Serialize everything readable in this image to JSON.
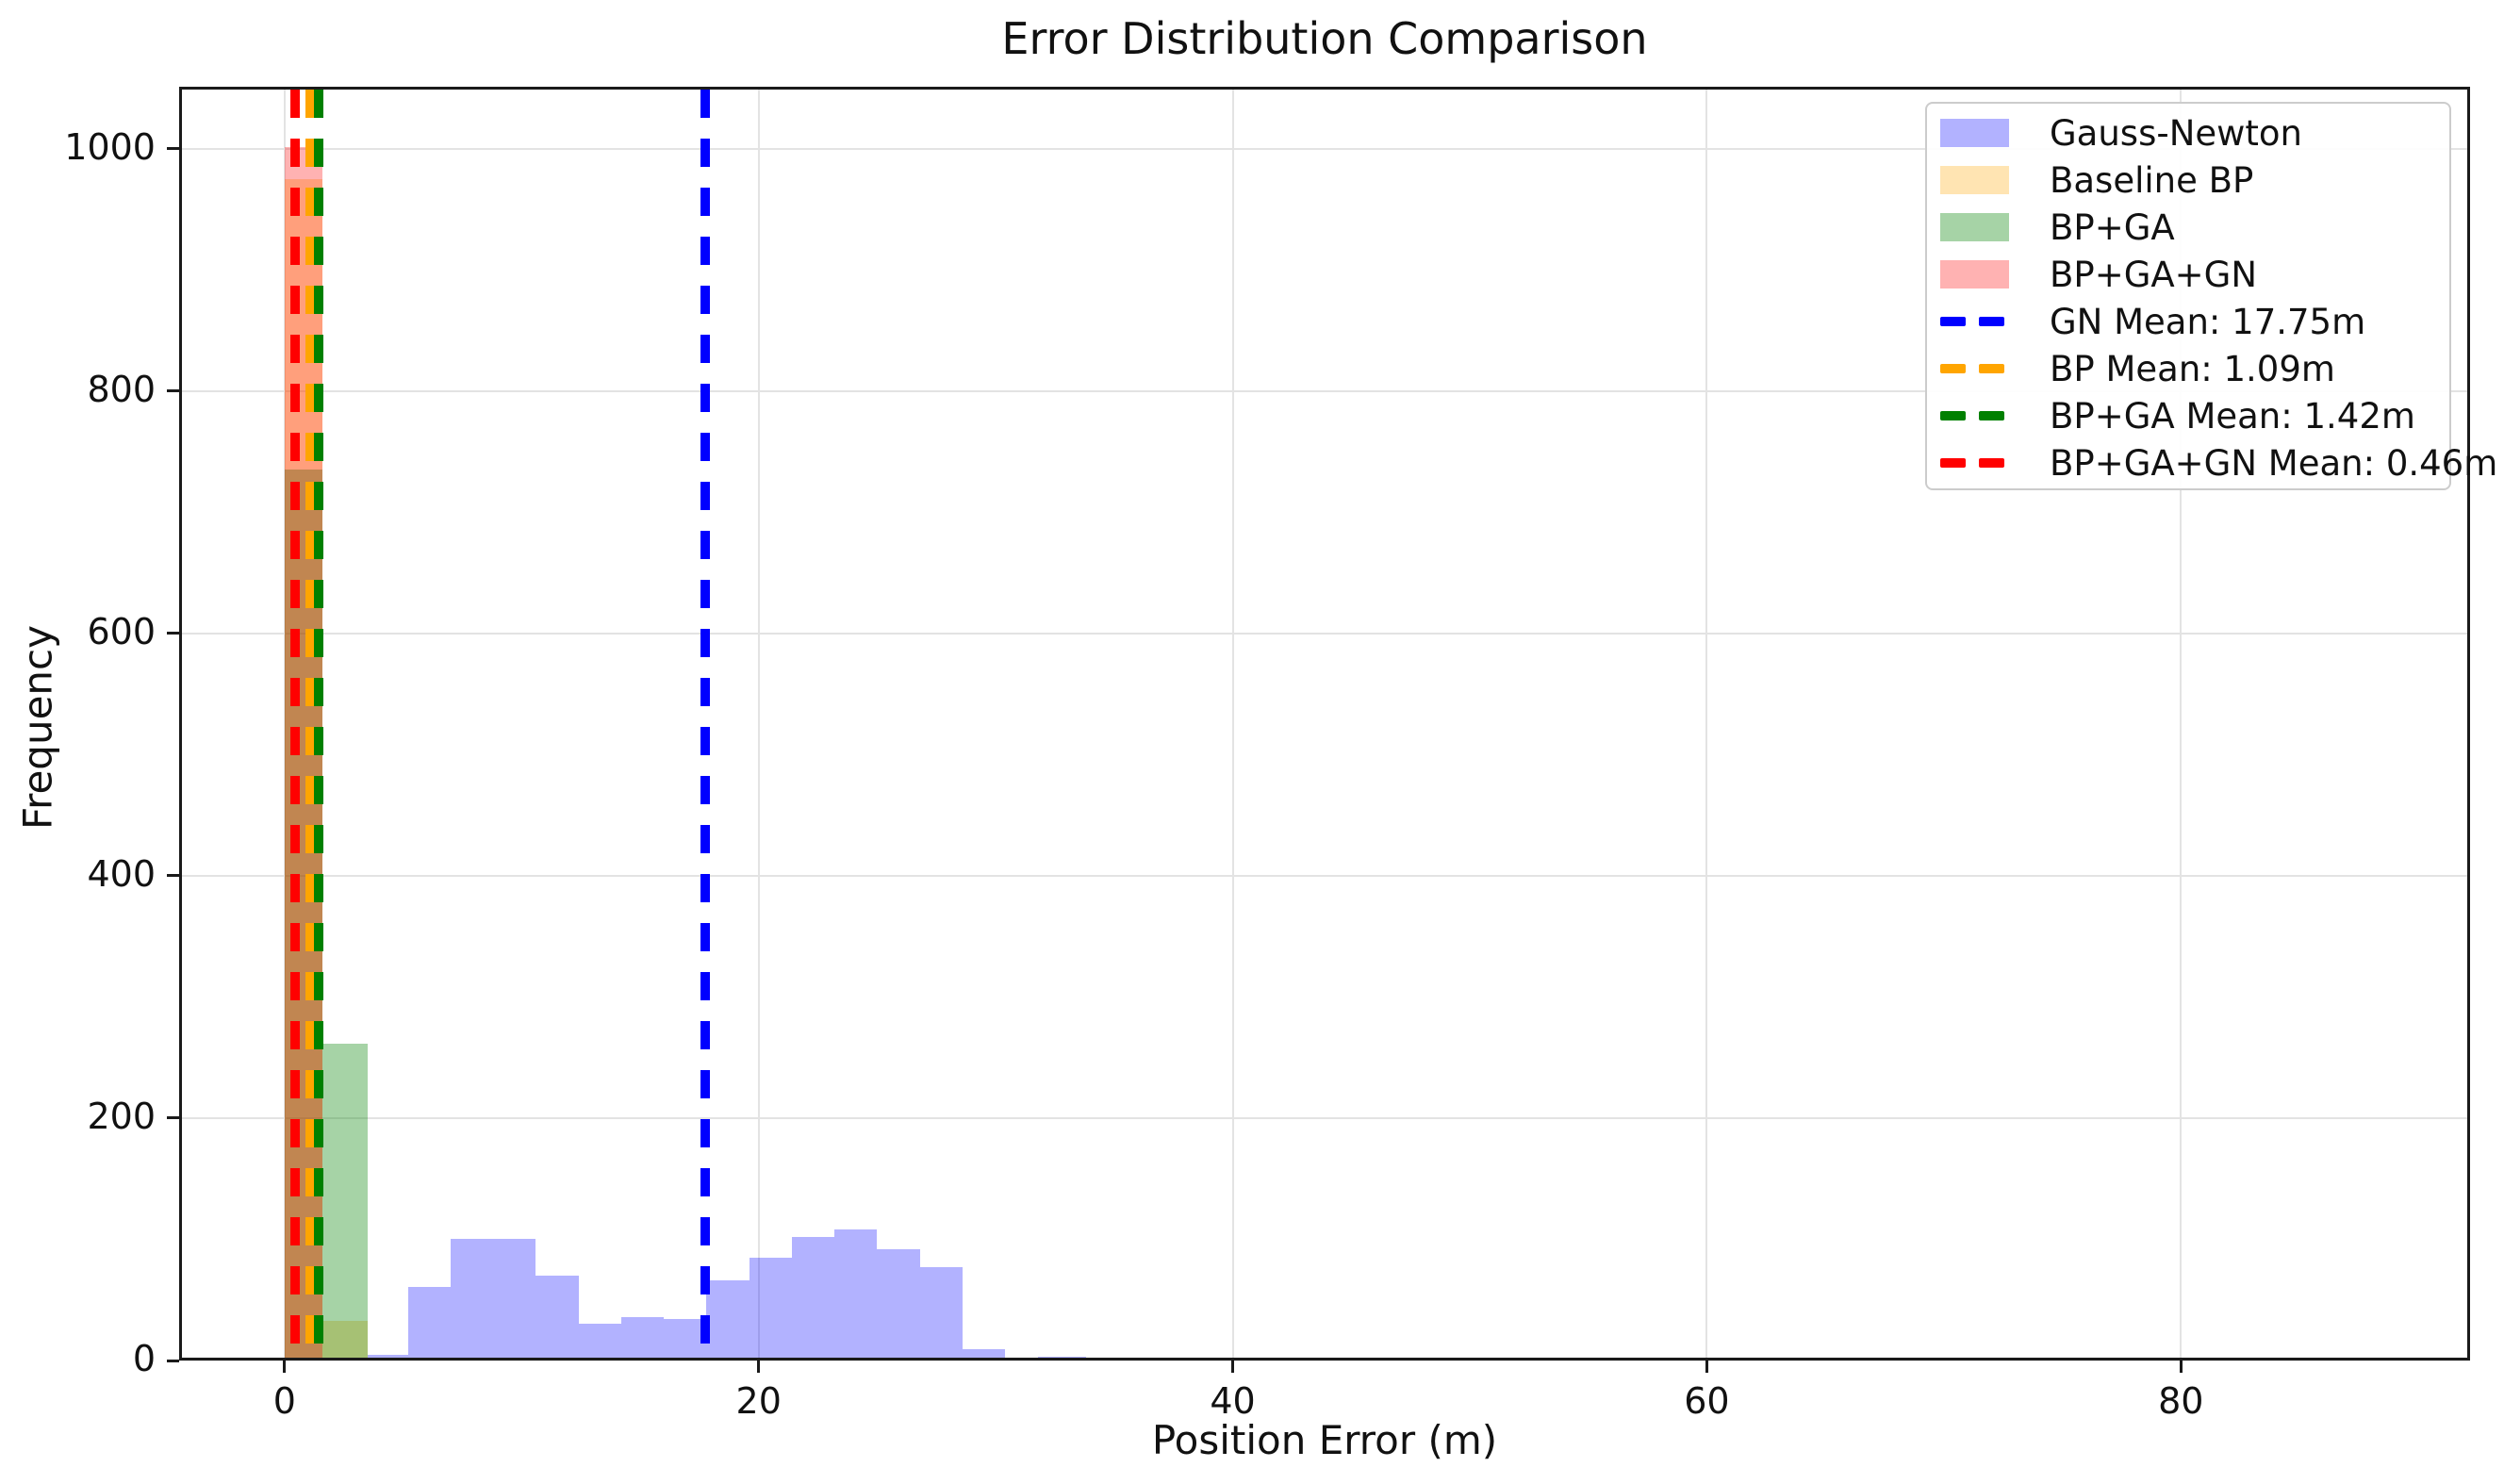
{
  "figure": {
    "background": "#ffffff"
  },
  "chart_data": {
    "type": "bar",
    "subtype": "histogram",
    "title": "Error Distribution Comparison",
    "xlabel": "Position Error (m)",
    "ylabel": "Frequency",
    "xlim": [
      -4.45,
      92.2
    ],
    "ylim": [
      0,
      1051
    ],
    "xticks": [
      0,
      20,
      40,
      60,
      80
    ],
    "yticks": [
      0,
      200,
      400,
      600,
      800,
      1000
    ],
    "grid": true,
    "legend_position": "upper right",
    "series": [
      {
        "name": "Gauss-Newton",
        "color": "#0000FF",
        "alpha": 0.3,
        "bins": [
          [
            3.5,
            5.2,
            5
          ],
          [
            5.2,
            7.0,
            61
          ],
          [
            7.0,
            8.8,
            100
          ],
          [
            8.8,
            10.6,
            100
          ],
          [
            10.6,
            12.4,
            70
          ],
          [
            12.4,
            14.2,
            30
          ],
          [
            14.2,
            16.0,
            36
          ],
          [
            16.0,
            17.8,
            34
          ],
          [
            17.8,
            19.6,
            66
          ],
          [
            19.6,
            21.4,
            85
          ],
          [
            21.4,
            23.2,
            102
          ],
          [
            23.2,
            25.0,
            108
          ],
          [
            25.0,
            26.8,
            92
          ],
          [
            26.8,
            28.6,
            77
          ],
          [
            28.6,
            30.4,
            9
          ],
          [
            31.8,
            33.8,
            3
          ],
          [
            42.9,
            45.2,
            2
          ],
          [
            49.7,
            51.6,
            2
          ],
          [
            86.2,
            88.0,
            2
          ]
        ]
      },
      {
        "name": "Baseline BP",
        "color": "#FFA500",
        "alpha": 0.3,
        "bins": [
          [
            0.0,
            1.6,
            975
          ],
          [
            1.6,
            3.5,
            33
          ]
        ]
      },
      {
        "name": "BP+GA",
        "color": "#008000",
        "alpha": 0.35,
        "bins": [
          [
            0.0,
            1.6,
            735
          ],
          [
            1.6,
            3.5,
            261
          ]
        ]
      },
      {
        "name": "BP+GA+GN",
        "color": "#FF0000",
        "alpha": 0.3,
        "bins": [
          [
            0.0,
            1.6,
            1001
          ]
        ]
      }
    ],
    "mean_lines": [
      {
        "label": "GN Mean: 17.75m",
        "value": 17.75,
        "color": "#0000FF"
      },
      {
        "label": "BP Mean: 1.09m",
        "value": 1.09,
        "color": "#FFA500"
      },
      {
        "label": "BP+GA Mean: 1.42m",
        "value": 1.42,
        "color": "#008000"
      },
      {
        "label": "BP+GA+GN Mean: 0.46m",
        "value": 0.46,
        "color": "#FF0000"
      }
    ],
    "style": {
      "grid_color": "#e3e3e3",
      "spine_color": "#1a1a1a",
      "text_color": "#111111"
    }
  }
}
